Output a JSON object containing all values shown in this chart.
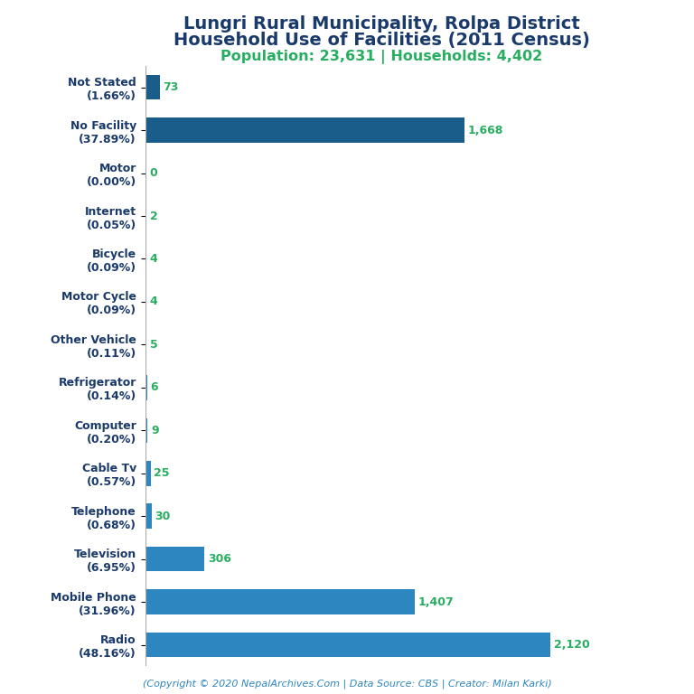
{
  "title_line1": "Lungri Rural Municipality, Rolpa District",
  "title_line2": "Household Use of Facilities (2011 Census)",
  "subtitle": "Population: 23,631 | Households: 4,402",
  "footer": "(Copyright © 2020 NepalArchives.Com | Data Source: CBS | Creator: Milan Karki)",
  "categories": [
    "Not Stated\n(1.66%)",
    "No Facility\n(37.89%)",
    "Motor\n(0.00%)",
    "Internet\n(0.05%)",
    "Bicycle\n(0.09%)",
    "Motor Cycle\n(0.09%)",
    "Other Vehicle\n(0.11%)",
    "Refrigerator\n(0.14%)",
    "Computer\n(0.20%)",
    "Cable Tv\n(0.57%)",
    "Telephone\n(0.68%)",
    "Television\n(6.95%)",
    "Mobile Phone\n(31.96%)",
    "Radio\n(48.16%)"
  ],
  "values": [
    73,
    1668,
    0,
    2,
    4,
    4,
    5,
    6,
    9,
    25,
    30,
    306,
    1407,
    2120
  ],
  "value_labels": [
    "73",
    "1,668",
    "0",
    "2",
    "4",
    "4",
    "5",
    "6",
    "9",
    "25",
    "30",
    "306",
    "1,407",
    "2,120"
  ],
  "bar_color_dark": "#1a5c8a",
  "bar_color_light": "#2e86c1",
  "title_color": "#1a3a6b",
  "subtitle_color": "#27ae60",
  "value_color": "#27ae60",
  "footer_color": "#2e86c1",
  "background_color": "#ffffff",
  "title_fontsize": 14,
  "subtitle_fontsize": 11.5,
  "label_fontsize": 9,
  "value_fontsize": 9,
  "footer_fontsize": 8
}
